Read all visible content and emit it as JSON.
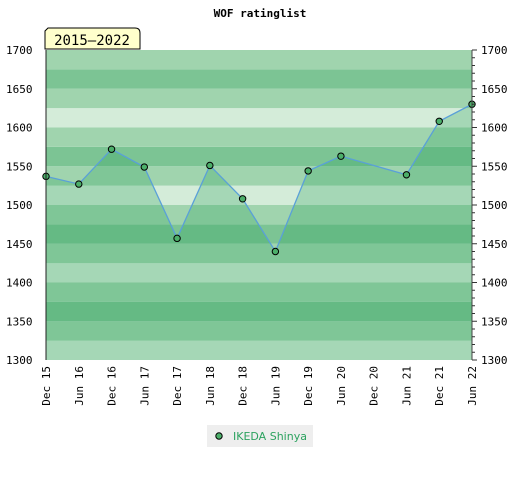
{
  "chart_data": {
    "type": "area",
    "title": "WOF ratinglist",
    "badge": "2015–2022",
    "categories": [
      "Dec 15",
      "Jun 16",
      "Dec 16",
      "Jun 17",
      "Dec 17",
      "Jun 18",
      "Dec 18",
      "Jun 19",
      "Dec 19",
      "Jun 20",
      "Dec 20",
      "Jun 21",
      "Dec 21",
      "Jun 22"
    ],
    "y_ticks": [
      1300,
      1350,
      1400,
      1450,
      1500,
      1550,
      1600,
      1650,
      1700
    ],
    "ylim": [
      1300,
      1700
    ],
    "series": [
      {
        "name": "IKEDA Shinya",
        "points": [
          {
            "x": "Dec 15",
            "y": 1537
          },
          {
            "x": "Jun 16",
            "y": 1527
          },
          {
            "x": "Dec 16",
            "y": 1572
          },
          {
            "x": "Jun 17",
            "y": 1549
          },
          {
            "x": "Dec 17",
            "y": 1457
          },
          {
            "x": "Jun 18",
            "y": 1551
          },
          {
            "x": "Dec 18",
            "y": 1508
          },
          {
            "x": "Jun 19",
            "y": 1440
          },
          {
            "x": "Dec 19",
            "y": 1544
          },
          {
            "x": "Jun 20",
            "y": 1563
          },
          {
            "x": "Jun 21",
            "y": 1539
          },
          {
            "x": "Dec 21",
            "y": 1608
          },
          {
            "x": "Jun 22",
            "y": 1630
          }
        ]
      }
    ],
    "grid": true,
    "legend_position": "bottom-center",
    "colors": {
      "line": "#5aa0d8",
      "marker": "#4caf6a",
      "band_dark": "#7cc494",
      "band_mid": "#a0d4ae",
      "band_light": "#d4ecd9",
      "legend_text": "#2ca25f",
      "badge_bg": "#ffffcc"
    }
  }
}
